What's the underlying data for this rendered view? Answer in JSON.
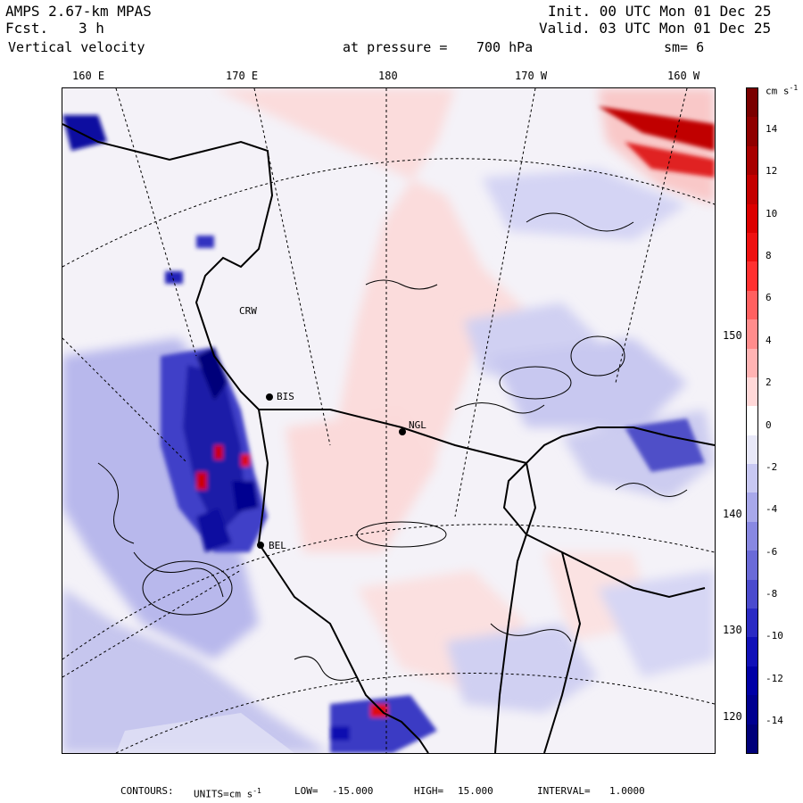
{
  "header": {
    "model": "AMPS 2.67-km MPAS",
    "fcst_label": "Fcst.",
    "fcst_value": "3 h",
    "field": "Vertical velocity",
    "init": "Init. 00 UTC Mon 01 Dec 25",
    "valid": "Valid. 03 UTC Mon 01 Dec 25",
    "pressure_label": "at pressure =",
    "pressure_value": "700 hPa",
    "smoothing": "sm= 6"
  },
  "axes": {
    "top_longitudes": [
      "160 E",
      "170 E",
      "180",
      "170 W",
      "160 W"
    ],
    "right_longitudes": [
      "150 W",
      "140 W",
      "130 W",
      "120 W"
    ]
  },
  "stations": [
    "CRW",
    "BIS",
    "NGL",
    "BEL"
  ],
  "colorbar": {
    "units": "cm s",
    "units_exp": "-1",
    "labels": [
      "14",
      "12",
      "10",
      "8",
      "6",
      "4",
      "2",
      "0",
      "-2",
      "-4",
      "-6",
      "-8",
      "-10",
      "-12",
      "-14"
    ],
    "colors": [
      "#7a0000",
      "#8f0000",
      "#a80000",
      "#c40000",
      "#dc0000",
      "#ee1010",
      "#ff3030",
      "#ff6060",
      "#ff8c8c",
      "#ffb3b3",
      "#ffd8d8",
      "#ffffff",
      "#e8e8f8",
      "#c8c8f2",
      "#a8a8ea",
      "#8888e2",
      "#6a6ad8",
      "#4a4ace",
      "#2a2ac4",
      "#1010b8",
      "#0000a6",
      "#000090",
      "#00007a"
    ]
  },
  "footer": {
    "contours_label": "CONTOURS:",
    "units_label": "UNITS=cm s",
    "units_exp": "-1",
    "low_label": "LOW=",
    "low_value": "-15.000",
    "high_label": "HIGH=",
    "high_value": "15.000",
    "interval_label": "INTERVAL=",
    "interval_value": "1.0000"
  }
}
